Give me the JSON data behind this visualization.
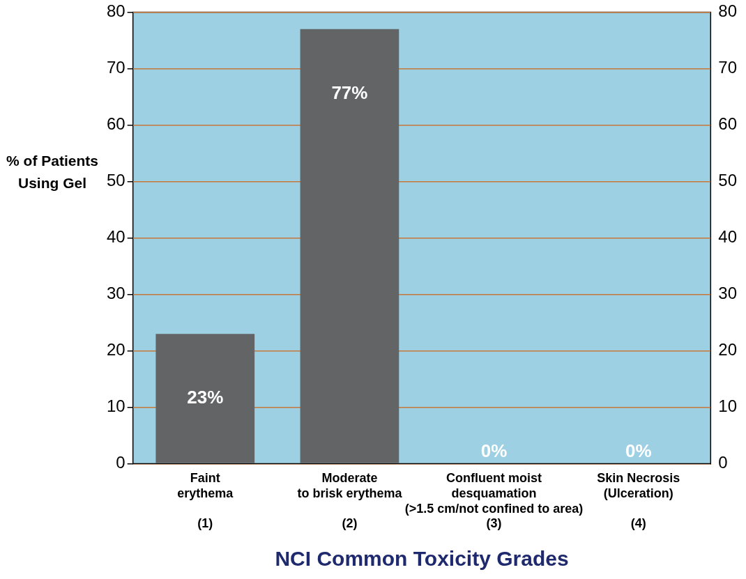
{
  "chart_data": {
    "type": "bar",
    "xlabel": "NCI Common Toxicity Grades",
    "ylabel": "%  of Patients Using Gel",
    "categories": [
      "Faint\nerythema\n\n(1)",
      "Moderate\nto brisk erythema\n\n(2)",
      "Confluent moist\ndesquamation\n(>1.5 cm/not confined to area)\n(3)",
      "Skin Necrosis\n(Ulceration)\n\n(4)"
    ],
    "values": [
      23,
      77,
      0,
      0
    ],
    "value_labels": [
      "23%",
      "77%",
      "0%",
      "0%"
    ],
    "color": "#636466",
    "ylim": [
      0,
      80
    ],
    "yticks": [
      0,
      10,
      20,
      30,
      40,
      50,
      60,
      70,
      80
    ],
    "y2lim": [
      0,
      80
    ],
    "y2ticks": [
      0,
      10,
      20,
      30,
      40,
      50,
      60,
      70,
      80
    ],
    "grid": "y"
  }
}
